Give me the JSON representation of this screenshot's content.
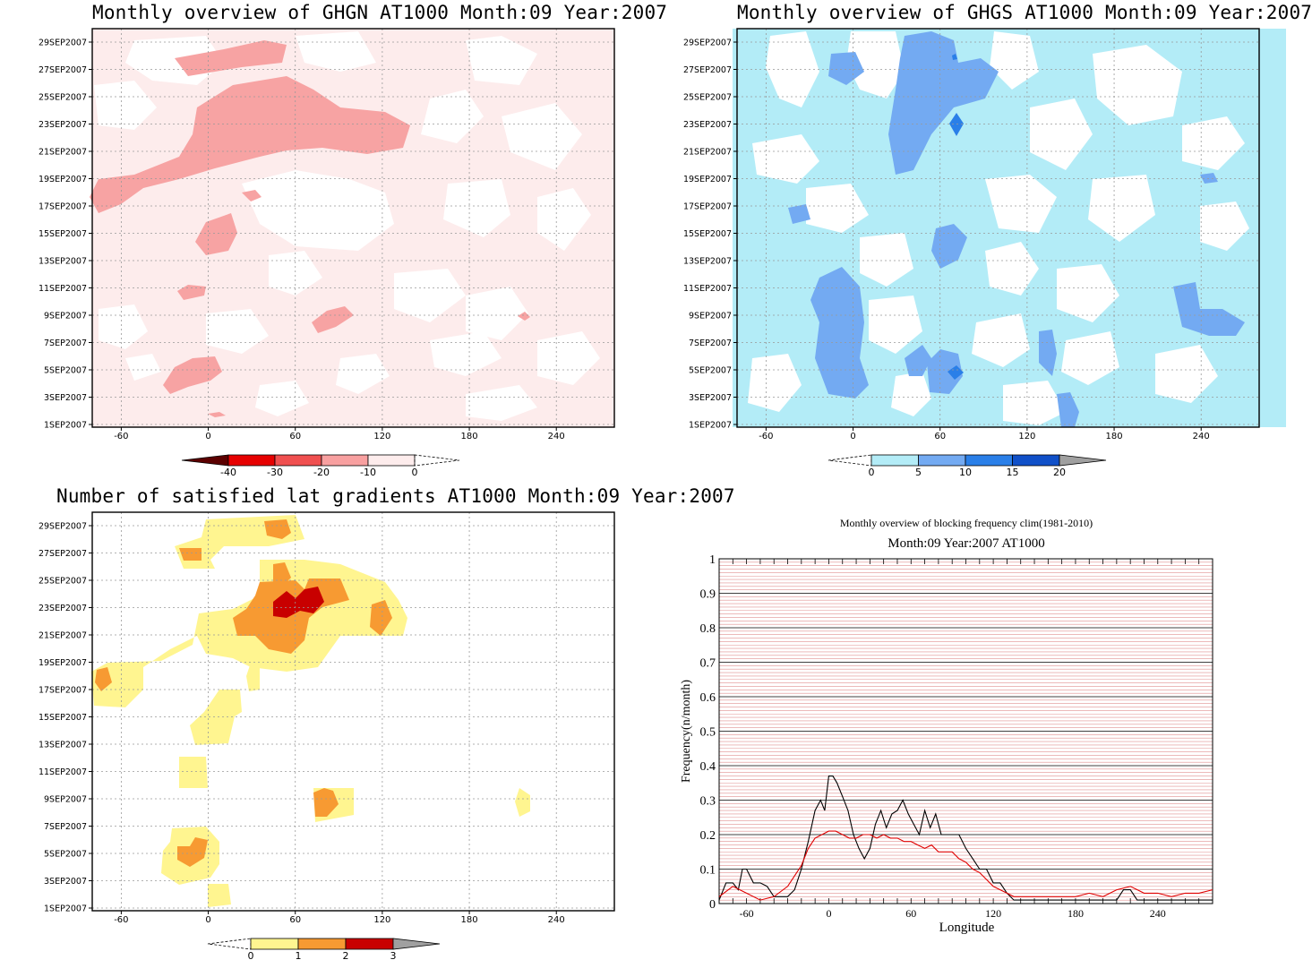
{
  "chart_data": [
    {
      "type": "heatmap",
      "title": "Monthly overview of GHGN AT1000 Month:09 Year:2007",
      "xticks": [
        -60,
        0,
        60,
        120,
        180,
        240
      ],
      "yticks": [
        "1SEP2007",
        "3SEP2007",
        "5SEP2007",
        "7SEP2007",
        "9SEP2007",
        "11SEP2007",
        "13SEP2007",
        "15SEP2007",
        "17SEP2007",
        "19SEP2007",
        "21SEP2007",
        "23SEP2007",
        "25SEP2007",
        "27SEP2007",
        "29SEP2007"
      ],
      "colorbar": {
        "labels": [
          "-40",
          "-30",
          "-20",
          "-10",
          "0"
        ],
        "colors": [
          "#5c0000",
          "#e60000",
          "#f05050",
          "#f8a0a0",
          "#fdecec"
        ]
      },
      "grid": true
    },
    {
      "type": "heatmap",
      "title": "Monthly overview of GHGS AT1000 Month:09 Year:2007",
      "xticks": [
        -60,
        0,
        60,
        120,
        180,
        240
      ],
      "yticks": [
        "1SEP2007",
        "3SEP2007",
        "5SEP2007",
        "7SEP2007",
        "9SEP2007",
        "11SEP2007",
        "13SEP2007",
        "15SEP2007",
        "17SEP2007",
        "19SEP2007",
        "21SEP2007",
        "23SEP2007",
        "25SEP2007",
        "27SEP2007",
        "29SEP2007"
      ],
      "colorbar": {
        "labels": [
          "0",
          "5",
          "10",
          "15",
          "20"
        ],
        "colors": [
          "#b3ecf7",
          "#73aaf2",
          "#2a7fe8",
          "#1050c8",
          "#a0a0a0"
        ]
      },
      "grid": true
    },
    {
      "type": "heatmap",
      "title": "Number of satisfied lat gradients AT1000 Month:09 Year:2007",
      "xticks": [
        -60,
        0,
        60,
        120,
        180,
        240
      ],
      "yticks": [
        "1SEP2007",
        "3SEP2007",
        "5SEP2007",
        "7SEP2007",
        "9SEP2007",
        "11SEP2007",
        "13SEP2007",
        "15SEP2007",
        "17SEP2007",
        "19SEP2007",
        "21SEP2007",
        "23SEP2007",
        "25SEP2007",
        "27SEP2007",
        "29SEP2007"
      ],
      "colorbar": {
        "labels": [
          "0",
          "1",
          "2",
          "3"
        ],
        "colors": [
          "#fff590",
          "#f79a32",
          "#c80000",
          "#a0a0a0"
        ]
      },
      "grid": true
    },
    {
      "type": "line",
      "title": "Monthly overview of blocking frequency clim(1981-2010)",
      "subtitle": "Month:09 Year:2007  AT1000",
      "xlabel": "Longitude",
      "ylabel": "Frequency(n/month)",
      "xticks": [
        -60,
        0,
        60,
        120,
        180,
        240
      ],
      "yticks": [
        "0",
        "0.1",
        "0.2",
        "0.3",
        "0.4",
        "0.5",
        "0.6",
        "0.7",
        "0.8",
        "0.9",
        "1"
      ],
      "xlim": [
        -80,
        280
      ],
      "ylim": [
        0,
        1
      ],
      "series": [
        {
          "color": "#000000",
          "x": [
            -80,
            -75,
            -70,
            -66,
            -63,
            -60,
            -55,
            -50,
            -45,
            -40,
            -35,
            -30,
            -25,
            -20,
            -15,
            -10,
            -6,
            -3,
            0,
            3,
            6,
            10,
            14,
            18,
            22,
            26,
            30,
            34,
            38,
            42,
            46,
            50,
            54,
            58,
            62,
            66,
            70,
            74,
            78,
            82,
            86,
            90,
            95,
            100,
            105,
            110,
            115,
            120,
            125,
            130,
            135,
            140,
            150,
            160,
            170,
            180,
            190,
            200,
            210,
            215,
            220,
            225,
            230,
            240,
            250,
            260,
            270,
            280
          ],
          "y": [
            0.01,
            0.06,
            0.06,
            0.04,
            0.1,
            0.1,
            0.06,
            0.06,
            0.05,
            0.02,
            0.02,
            0.02,
            0.04,
            0.1,
            0.18,
            0.27,
            0.3,
            0.27,
            0.37,
            0.37,
            0.35,
            0.31,
            0.27,
            0.2,
            0.16,
            0.13,
            0.16,
            0.23,
            0.27,
            0.22,
            0.26,
            0.27,
            0.3,
            0.26,
            0.23,
            0.2,
            0.27,
            0.22,
            0.26,
            0.2,
            0.2,
            0.2,
            0.2,
            0.16,
            0.13,
            0.1,
            0.1,
            0.06,
            0.06,
            0.03,
            0.01,
            0.01,
            0.01,
            0.01,
            0.01,
            0.01,
            0.01,
            0.01,
            0.01,
            0.04,
            0.04,
            0.01,
            0.01,
            0.01,
            0.01,
            0.01,
            0.01,
            0.01
          ]
        },
        {
          "color": "#e00000",
          "x": [
            -80,
            -70,
            -60,
            -50,
            -40,
            -30,
            -20,
            -15,
            -10,
            -5,
            0,
            5,
            10,
            15,
            20,
            25,
            30,
            35,
            40,
            45,
            50,
            55,
            60,
            65,
            70,
            75,
            80,
            85,
            90,
            95,
            100,
            105,
            110,
            115,
            120,
            125,
            130,
            135,
            140,
            150,
            160,
            170,
            180,
            190,
            200,
            210,
            220,
            230,
            240,
            250,
            260,
            270,
            280
          ],
          "y": [
            0.02,
            0.05,
            0.03,
            0.01,
            0.02,
            0.05,
            0.11,
            0.16,
            0.19,
            0.2,
            0.21,
            0.21,
            0.2,
            0.19,
            0.19,
            0.2,
            0.2,
            0.19,
            0.2,
            0.19,
            0.19,
            0.18,
            0.18,
            0.17,
            0.16,
            0.17,
            0.15,
            0.15,
            0.15,
            0.13,
            0.12,
            0.1,
            0.09,
            0.07,
            0.05,
            0.04,
            0.03,
            0.02,
            0.02,
            0.02,
            0.02,
            0.02,
            0.02,
            0.03,
            0.02,
            0.04,
            0.05,
            0.03,
            0.03,
            0.02,
            0.03,
            0.03,
            0.04
          ]
        }
      ]
    }
  ]
}
